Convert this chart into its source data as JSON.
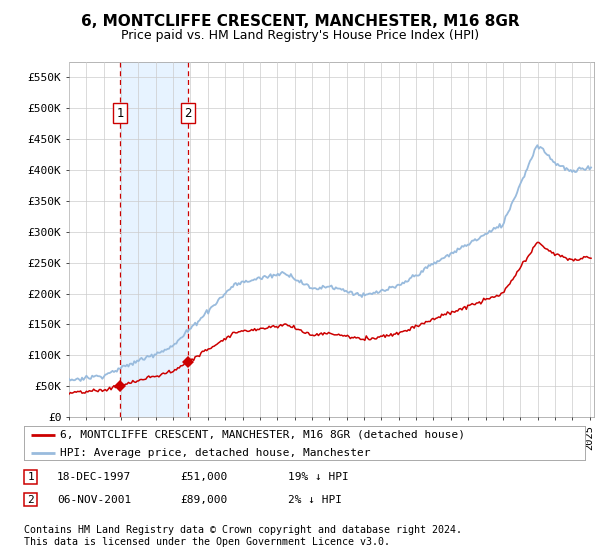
{
  "title": "6, MONTCLIFFE CRESCENT, MANCHESTER, M16 8GR",
  "subtitle": "Price paid vs. HM Land Registry's House Price Index (HPI)",
  "ylim": [
    0,
    575000
  ],
  "yticks": [
    0,
    50000,
    100000,
    150000,
    200000,
    250000,
    300000,
    350000,
    400000,
    450000,
    500000,
    550000
  ],
  "ytick_labels": [
    "£0",
    "£50K",
    "£100K",
    "£150K",
    "£200K",
    "£250K",
    "£300K",
    "£350K",
    "£400K",
    "£450K",
    "£500K",
    "£550K"
  ],
  "sale1_date": 1997.96,
  "sale1_price": 51000,
  "sale1_label": "1",
  "sale2_date": 2001.84,
  "sale2_price": 89000,
  "sale2_label": "2",
  "sale_color": "#cc0000",
  "hpi_color": "#99bbdd",
  "vline_color": "#cc0000",
  "vbox_color": "#ddeeff",
  "legend_label_sale": "6, MONTCLIFFE CRESCENT, MANCHESTER, M16 8GR (detached house)",
  "legend_label_hpi": "HPI: Average price, detached house, Manchester",
  "table_row1": [
    "1",
    "18-DEC-1997",
    "£51,000",
    "19% ↓ HPI"
  ],
  "table_row2": [
    "2",
    "06-NOV-2001",
    "£89,000",
    "2% ↓ HPI"
  ],
  "footnote": "Contains HM Land Registry data © Crown copyright and database right 2024.\nThis data is licensed under the Open Government Licence v3.0.",
  "background_color": "#ffffff",
  "grid_color": "#cccccc"
}
